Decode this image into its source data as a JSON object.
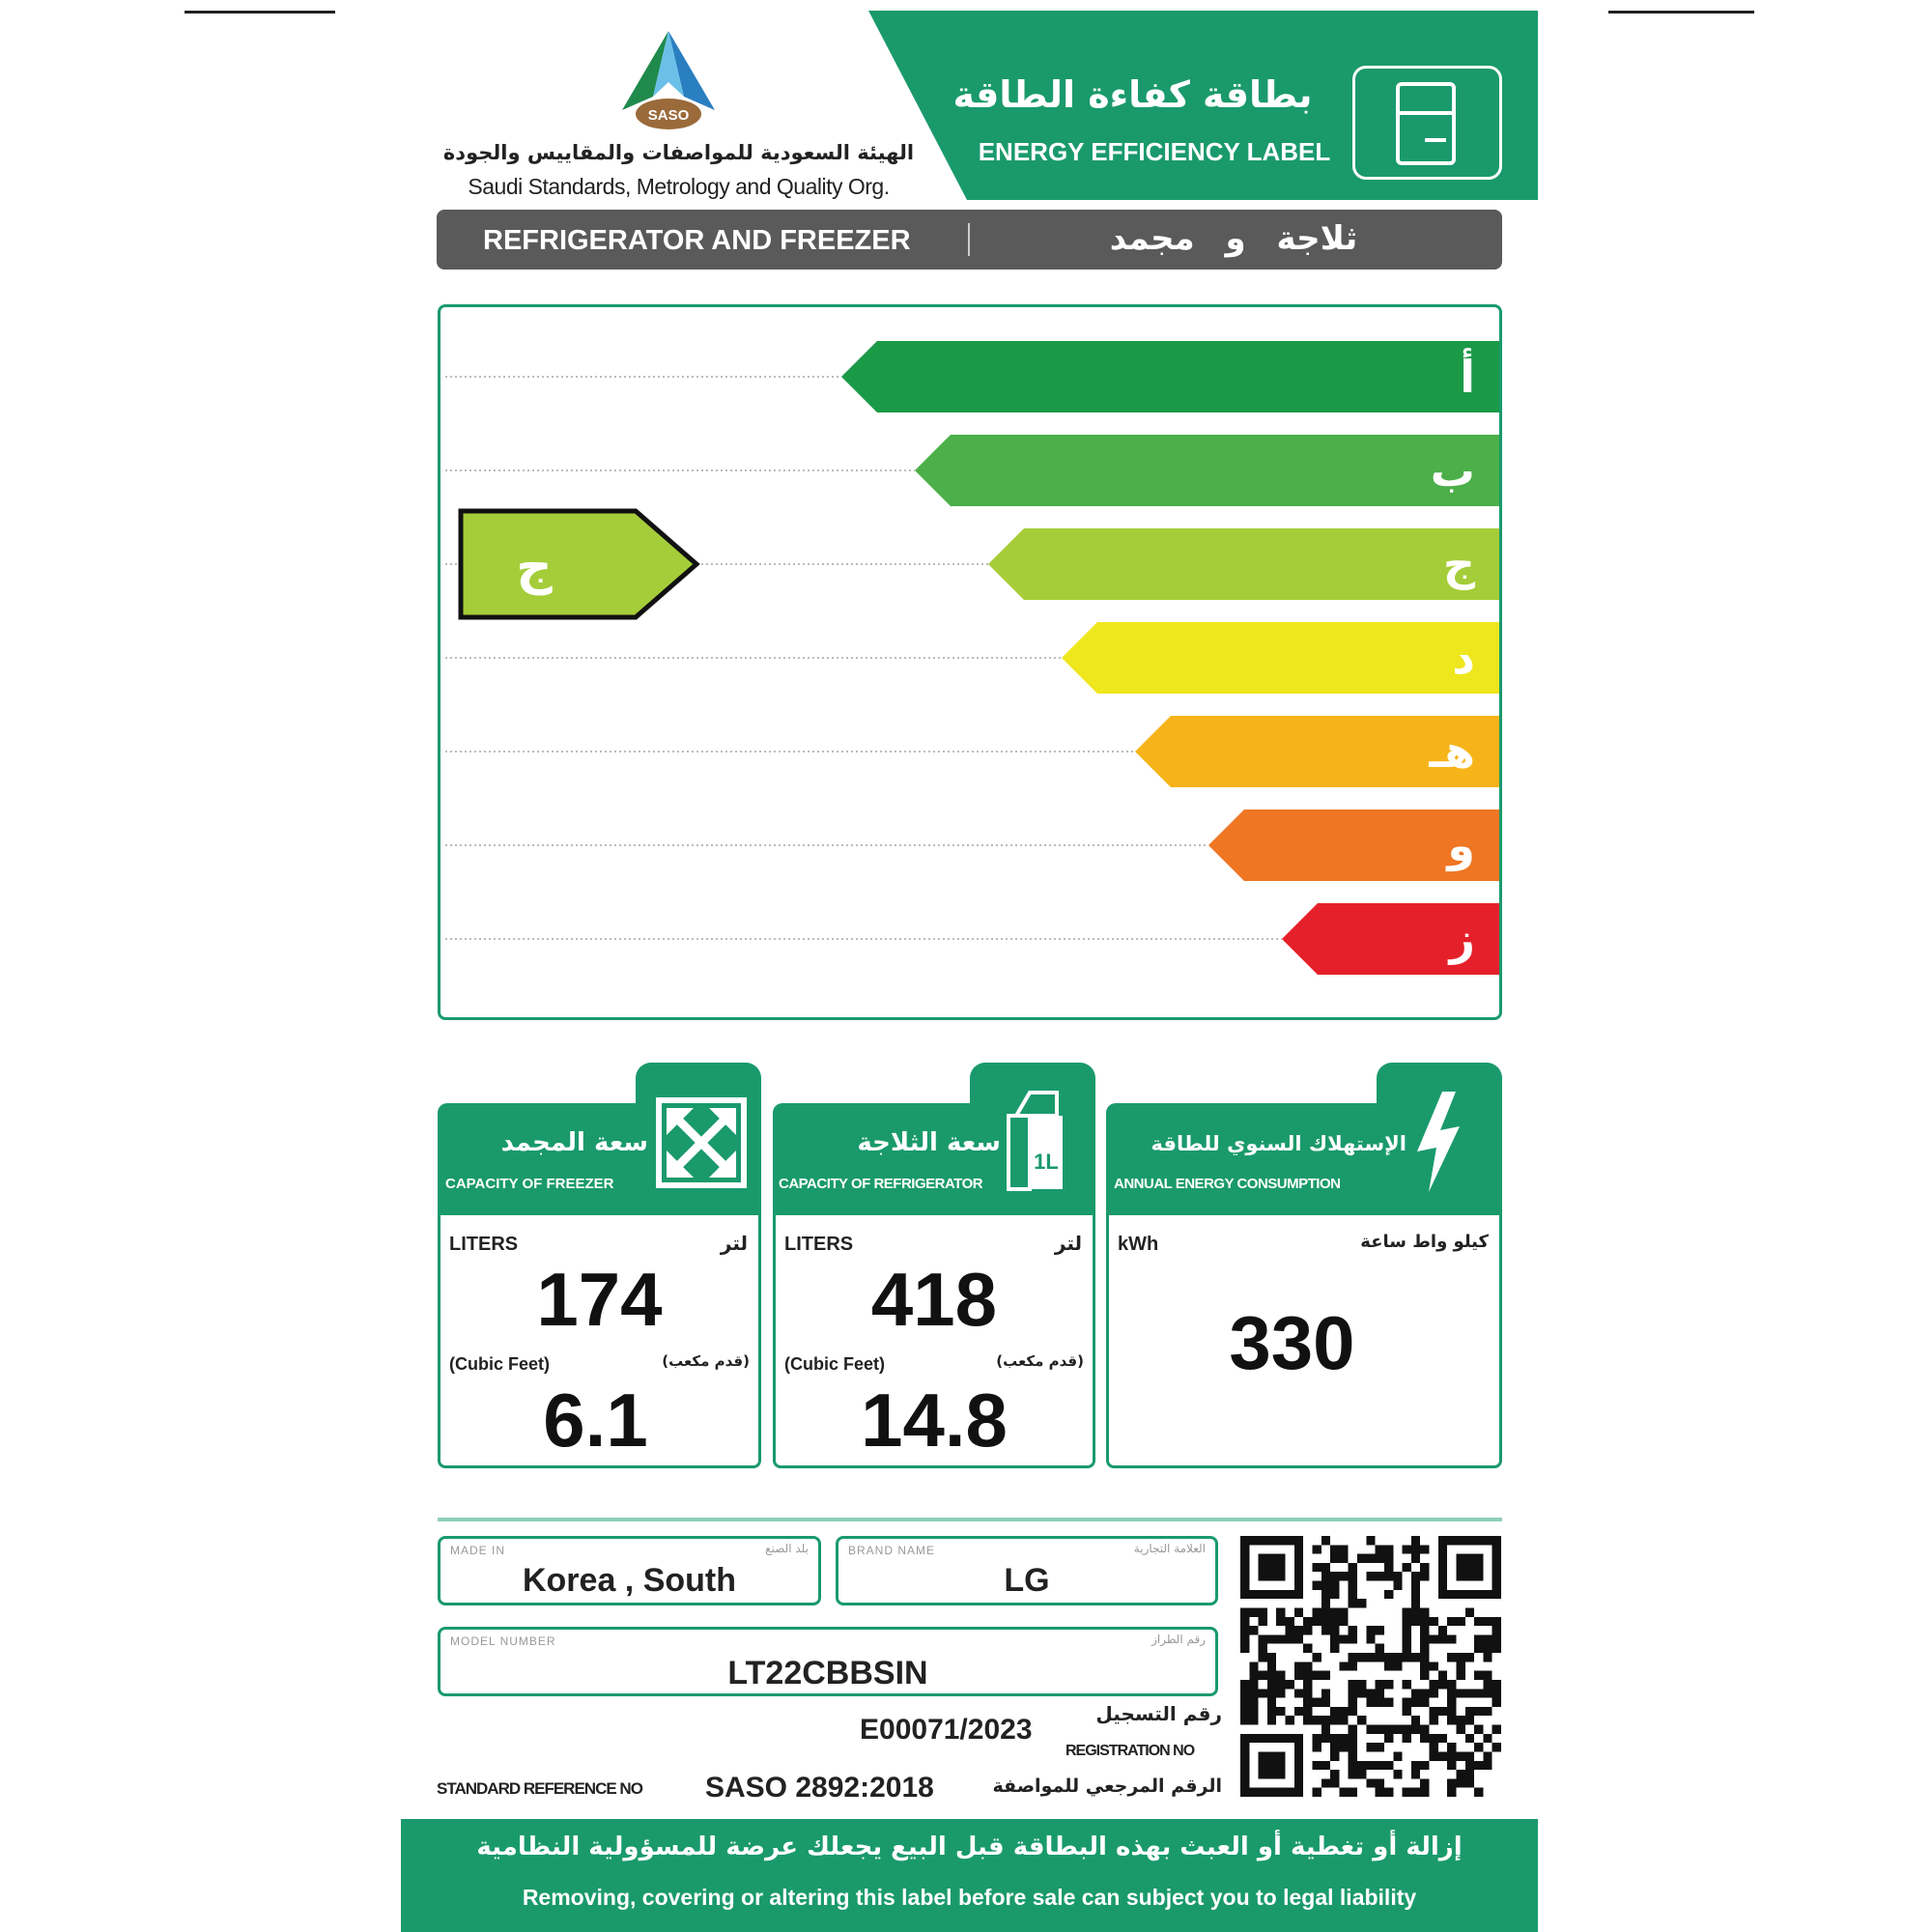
{
  "header": {
    "arabic_title": "بطاقة كفاءة الطاقة",
    "english_title": "ENERGY EFFICIENCY LABEL",
    "icon": "refrigerator-icon"
  },
  "org": {
    "logo_text": "SASO",
    "arabic_name": "الهيئة السعودية للمواصفات والمقاييس والجودة",
    "english_name": "Saudi Standards, Metrology and Quality Org."
  },
  "category": {
    "english": "REFRIGERATOR AND FREEZER",
    "arabic": "ثلاجة و مجمد"
  },
  "scale": {
    "classes": [
      {
        "letter": "أ",
        "color": "#1a9a46"
      },
      {
        "letter": "ب",
        "color": "#4caf49"
      },
      {
        "letter": "ج",
        "color": "#a5cd39"
      },
      {
        "letter": "د",
        "color": "#eee71e"
      },
      {
        "letter": "هـ",
        "color": "#f7b41a"
      },
      {
        "letter": "و",
        "color": "#ef7623"
      },
      {
        "letter": "ز",
        "color": "#e5202a"
      }
    ],
    "rating": "ج",
    "rating_index": 2,
    "rating_color": "#a5cd39"
  },
  "cards": {
    "freezer": {
      "title_ar": "سعة المجمد",
      "title_en": "CAPACITY OF FREEZER",
      "unit_en": "LITERS",
      "unit_ar": "لتر",
      "liters": "174",
      "cf_en": "(Cubic Feet)",
      "cf_ar": "(قدم مكعب)",
      "cubic_feet": "6.1",
      "icon": "expand-arrows-icon"
    },
    "fridge": {
      "title_ar": "سعة الثلاجة",
      "title_en": "CAPACITY OF REFRIGERATOR",
      "unit_en": "LITERS",
      "unit_ar": "لتر",
      "liters": "418",
      "cf_en": "(Cubic Feet)",
      "cf_ar": "(قدم مكعب)",
      "cubic_feet": "14.8",
      "icon": "milk-carton-icon",
      "carton_label": "1L"
    },
    "energy": {
      "title_ar": "الإستهلاك السنوي للطاقة",
      "title_en": "ANNUAL ENERGY CONSUMPTION",
      "unit_en": "kWh",
      "unit_ar": "كيلو واط ساعة",
      "value": "330",
      "icon": "lightning-icon"
    }
  },
  "info": {
    "made_in_label": "MADE IN",
    "made_in_label_ar": "بلد الصنع",
    "made_in": "Korea , South",
    "brand_label": "BRAND NAME",
    "brand_label_ar": "العلامة التجارية",
    "brand": "LG",
    "model_label": "MODEL NUMBER",
    "model_label_ar": "رقم الطراز",
    "model": "LT22CBBSIN",
    "reg_label_ar": "رقم التسجيل",
    "reg_label": "REGISTRATION NO",
    "reg_no": "E00071/2023",
    "std_label": "STANDARD REFERENCE NO",
    "std_no": "SASO 2892:2018",
    "std_label_ar": "الرقم المرجعي للمواصفة"
  },
  "footer": {
    "arabic": "إزالة أو تغطية أو العبث بهذه البطاقة قبل البيع يجعلك عرضة للمسؤولية النظامية",
    "english": "Removing, covering or altering this label before sale can subject you to legal liability"
  },
  "colors": {
    "brand_green": "#1a9a6c",
    "bar_grey": "#5a5a5a"
  }
}
